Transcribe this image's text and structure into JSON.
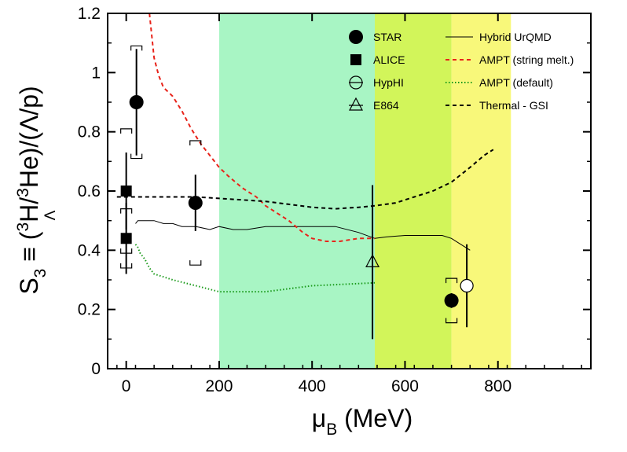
{
  "chart_data": {
    "type": "scatter",
    "xlabel": {
      "main": "μ",
      "sub": "B",
      "tail": " (MeV)"
    },
    "ylabel": {
      "prefix": "S",
      "prefix_sub": "3",
      "eq": " ≡ (",
      "sup": "3",
      "h": "H/",
      "he_sup": "3",
      "tail": "He)/(Λ/p)",
      "lambda_sub": "Λ"
    },
    "xlim": [
      -40,
      1000
    ],
    "ylim": [
      0,
      1.2
    ],
    "x_ticks": [
      0,
      200,
      400,
      600,
      800
    ],
    "x_tick_labels": [
      "0",
      "200",
      "400",
      "600",
      "800"
    ],
    "y_ticks": [
      0,
      0.2,
      0.4,
      0.6,
      0.8,
      1.0,
      1.2
    ],
    "y_tick_labels": [
      "0",
      "0.2",
      "0.4",
      "0.6",
      "0.8",
      "1",
      "1.2"
    ],
    "grid": false,
    "legend_position": "top-right",
    "bands": [
      {
        "from": 200,
        "to": 535,
        "color": "#a8f5c4"
      },
      {
        "from": 535,
        "to": 700,
        "color": "#d2f55a"
      },
      {
        "from": 700,
        "to": 828,
        "color": "#f8f87a"
      }
    ],
    "series": [
      {
        "name": "STAR",
        "marker": "circle-filled",
        "points": [
          {
            "x": 22,
            "y": 0.9,
            "err_lo": 0.18,
            "err_hi": 0.18,
            "sys_lo": 0.19,
            "sys_hi": 0.19
          },
          {
            "x": 149,
            "y": 0.56,
            "err_lo": 0.095,
            "err_hi": 0.095,
            "sys_lo": 0.21,
            "sys_hi": 0.21
          },
          {
            "x": 700,
            "y": 0.23,
            "err_lo": 0.025,
            "err_hi": 0.025,
            "sys_lo": 0.075,
            "sys_hi": 0.075
          }
        ]
      },
      {
        "name": "ALICE",
        "marker": "square-filled",
        "points": [
          {
            "x": 0,
            "y": 0.6,
            "err_lo": 0.13,
            "err_hi": 0.13,
            "sys_lo": 0.21,
            "sys_hi": 0.21
          },
          {
            "x": 0,
            "y": 0.44,
            "err_lo": 0.12,
            "err_hi": 0.12,
            "sys_lo": 0.1,
            "sys_hi": 0.1
          }
        ]
      },
      {
        "name": "HypHI",
        "marker": "circle-open",
        "points": [
          {
            "x": 733,
            "y": 0.28,
            "err_lo": 0.14,
            "err_hi": 0.14
          }
        ]
      },
      {
        "name": "E864",
        "marker": "triangle-open",
        "points": [
          {
            "x": 530,
            "y": 0.36,
            "err_lo": 0.26,
            "err_hi": 0.26
          }
        ]
      }
    ],
    "curves": [
      {
        "name": "Hybrid UrQMD",
        "style": "solid",
        "color": "#000000",
        "x": [
          20,
          25,
          40,
          60,
          80,
          100,
          120,
          150,
          180,
          200,
          230,
          260,
          300,
          350,
          400,
          450,
          500,
          535,
          560,
          600,
          640,
          680,
          700,
          720,
          740
        ],
        "y": [
          0.49,
          0.5,
          0.5,
          0.5,
          0.49,
          0.49,
          0.48,
          0.48,
          0.47,
          0.48,
          0.47,
          0.47,
          0.48,
          0.48,
          0.48,
          0.48,
          0.46,
          0.44,
          0.445,
          0.45,
          0.45,
          0.45,
          0.44,
          0.42,
          0.4
        ]
      },
      {
        "name": "AMPT (string melt.)",
        "style": "dashed",
        "color": "#e8231a",
        "x": [
          50,
          60,
          70,
          80,
          100,
          120,
          140,
          160,
          180,
          200,
          220,
          250,
          280,
          300,
          330,
          350,
          380,
          400,
          430,
          460,
          500,
          535
        ],
        "y": [
          1.2,
          1.05,
          0.99,
          0.95,
          0.92,
          0.87,
          0.81,
          0.76,
          0.72,
          0.68,
          0.65,
          0.61,
          0.58,
          0.55,
          0.52,
          0.5,
          0.46,
          0.44,
          0.43,
          0.43,
          0.44,
          0.44
        ]
      },
      {
        "name": "AMPT (default)",
        "style": "dotted",
        "color": "#1a9a1a",
        "x": [
          20,
          25,
          30,
          40,
          50,
          60,
          80,
          100,
          150,
          200,
          300,
          400,
          535
        ],
        "y": [
          0.42,
          0.41,
          0.39,
          0.37,
          0.34,
          0.32,
          0.31,
          0.3,
          0.28,
          0.26,
          0.26,
          0.28,
          0.29
        ]
      },
      {
        "name": "Thermal - GSI",
        "style": "dashed",
        "color": "#000000",
        "x": [
          -20,
          0,
          50,
          100,
          150,
          200,
          250,
          300,
          350,
          400,
          450,
          500,
          535,
          580,
          620,
          660,
          700,
          740,
          770,
          790
        ],
        "y": [
          0.58,
          0.58,
          0.58,
          0.58,
          0.58,
          0.575,
          0.57,
          0.565,
          0.555,
          0.545,
          0.54,
          0.545,
          0.55,
          0.56,
          0.58,
          0.6,
          0.63,
          0.68,
          0.72,
          0.74
        ]
      }
    ]
  }
}
